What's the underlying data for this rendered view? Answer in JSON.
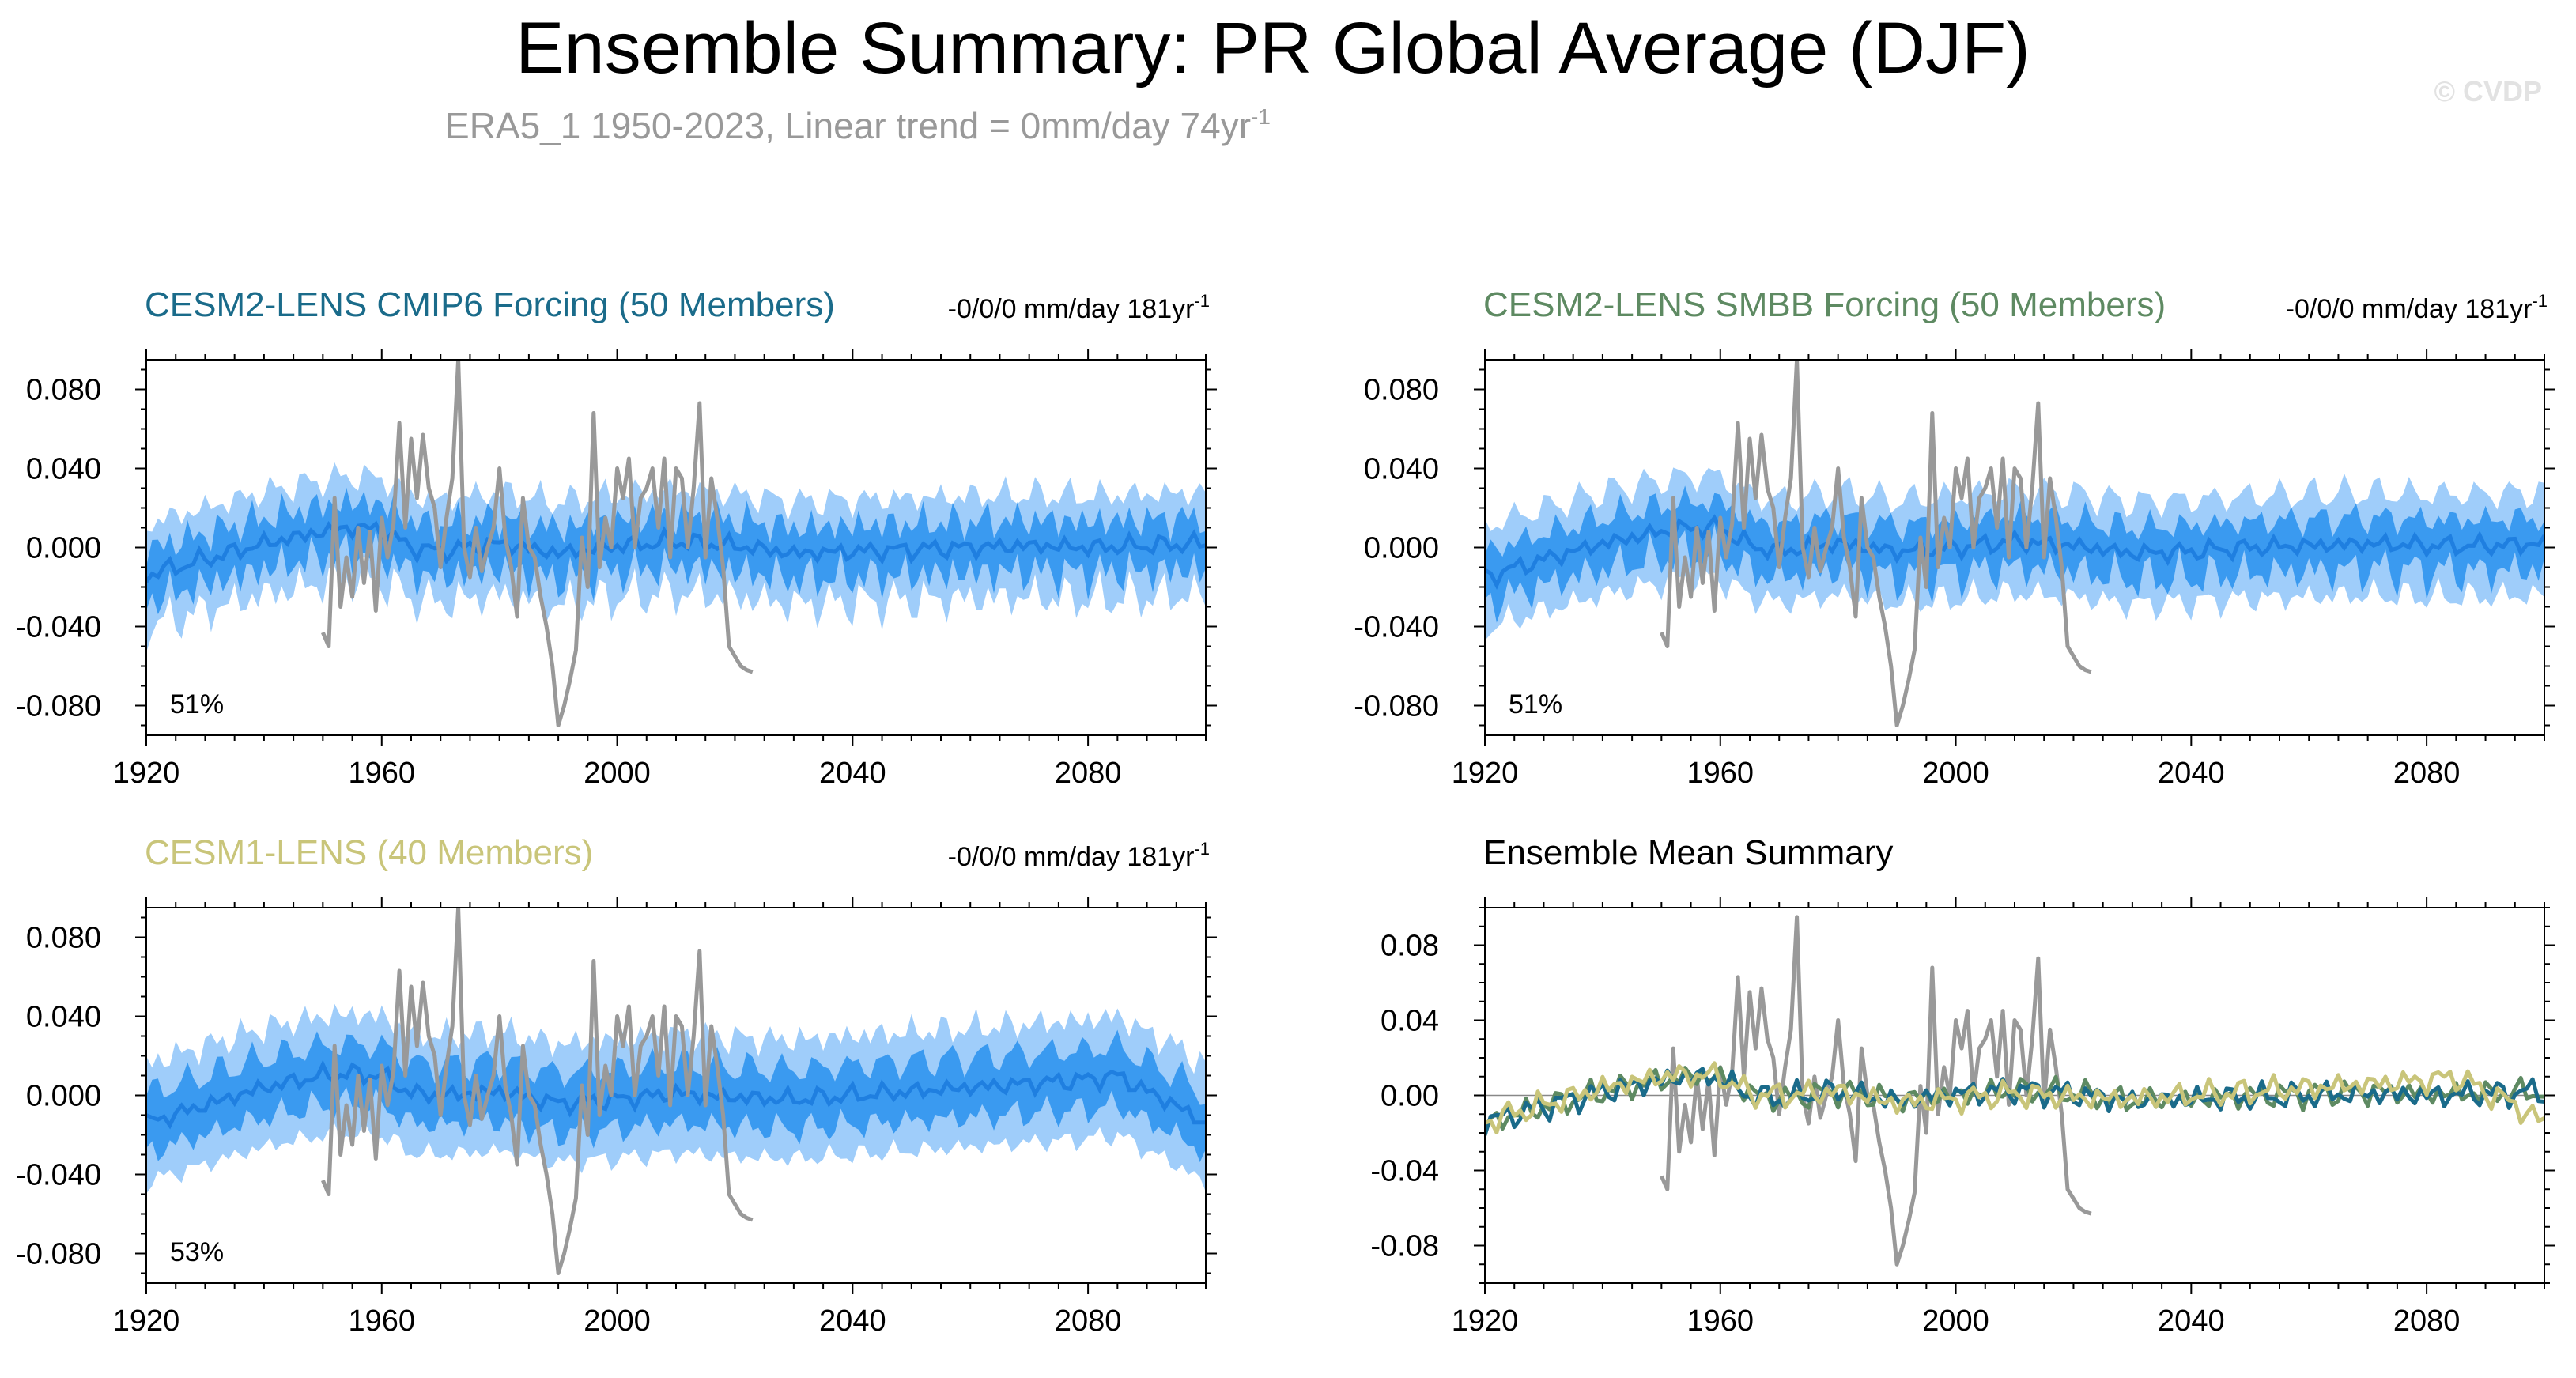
{
  "title": "Ensemble Summary: PR Global Average (DJF)",
  "subtitle": "ERA5_1 1950-2023, Linear trend = 0mm/day 74yr",
  "subtitle_sup": "-1",
  "watermark": "© CVDP",
  "colors": {
    "obs": "#999999",
    "band_outer": "#9fcdfa",
    "band_inner": "#3a9af0",
    "mean_line": "#1f7fe0",
    "cmip6": "#1a6b8a",
    "smbb": "#5e8a62",
    "cesm1": "#c9c57a"
  },
  "chart_data": [
    {
      "type": "area",
      "panel": "top-left",
      "title": "CESM2-LENS CMIP6 Forcing (50 Members)",
      "title_color": "#1a6b8a",
      "trend_label": "-0/0/0 mm/day 181yr",
      "trend_sup": "-1",
      "percent_label": "51%",
      "xlim": [
        1920,
        2100
      ],
      "ylim": [
        -0.095,
        0.095
      ],
      "xticks": [
        "1920",
        "1960",
        "2000",
        "2040",
        "2080"
      ],
      "yticks": [
        "0.080",
        "0.040",
        "0.000",
        "-0.040",
        "-0.080"
      ],
      "ensemble_mean": {
        "x": [
          1920,
          1930,
          1940,
          1950,
          1955,
          1960,
          1965,
          1970,
          1980,
          1990,
          2000,
          2010,
          2020,
          2030,
          2040,
          2050,
          2060,
          2070,
          2080,
          2090,
          2100
        ],
        "y": [
          -0.014,
          -0.006,
          0.002,
          0.008,
          0.01,
          0.009,
          0.0,
          -0.002,
          0.002,
          -0.003,
          0.001,
          0.003,
          0.001,
          -0.003,
          -0.002,
          -0.001,
          0.0,
          0.001,
          0.0,
          0.001,
          0.002
        ]
      },
      "inner_halfwidth": 0.013,
      "outer_halfwidth": 0.026,
      "series": [
        {
          "name": "ERA5_1",
          "x": [
            1950,
            1951,
            1952,
            1953,
            1954,
            1955,
            1956,
            1957,
            1958,
            1959,
            1960,
            1961,
            1962,
            1963,
            1964,
            1965,
            1966,
            1967,
            1968,
            1969,
            1970,
            1971,
            1972,
            1973,
            1974,
            1975,
            1976,
            1977,
            1978,
            1979,
            1980,
            1981,
            1982,
            1983,
            1984,
            1985,
            1986,
            1987,
            1988,
            1989,
            1990,
            1991,
            1992,
            1993,
            1994,
            1995,
            1996,
            1997,
            1998,
            1999,
            2000,
            2001,
            2002,
            2003,
            2004,
            2005,
            2006,
            2007,
            2008,
            2009,
            2010,
            2011,
            2012,
            2013,
            2014,
            2015,
            2016,
            2017,
            2018,
            2019,
            2020,
            2021,
            2022,
            2023
          ],
          "y": [
            -0.043,
            -0.05,
            0.025,
            -0.03,
            -0.005,
            -0.025,
            0.01,
            -0.018,
            0.008,
            -0.032,
            0.015,
            -0.005,
            0.012,
            0.063,
            0.01,
            0.055,
            0.025,
            0.057,
            0.03,
            0.02,
            -0.01,
            0.015,
            0.035,
            0.095,
            0.0,
            -0.015,
            0.01,
            -0.012,
            0.0,
            0.01,
            0.04,
            0.005,
            -0.01,
            -0.035,
            0.025,
            0.0,
            -0.005,
            -0.025,
            -0.04,
            -0.06,
            -0.09,
            -0.08,
            -0.067,
            -0.052,
            0.005,
            -0.02,
            0.068,
            -0.01,
            0.015,
            0.0,
            0.04,
            0.025,
            0.045,
            0.0,
            0.025,
            0.03,
            0.04,
            0.01,
            0.045,
            -0.005,
            0.04,
            0.035,
            0.0,
            0.03,
            0.073,
            -0.005,
            0.035,
            0.015,
            -0.01,
            -0.05,
            -0.055,
            -0.06,
            -0.062,
            -0.063
          ]
        }
      ]
    },
    {
      "type": "area",
      "panel": "top-right",
      "title": "CESM2-LENS SMBB Forcing (50 Members)",
      "title_color": "#5e8a62",
      "trend_label": "-0/0/0 mm/day 181yr",
      "trend_sup": "-1",
      "percent_label": "51%",
      "xlim": [
        1920,
        2100
      ],
      "ylim": [
        -0.095,
        0.095
      ],
      "xticks": [
        "1920",
        "1960",
        "2000",
        "2040",
        "2080"
      ],
      "yticks": [
        "0.080",
        "0.040",
        "0.000",
        "-0.040",
        "-0.080"
      ],
      "ensemble_mean": {
        "x": [
          1920,
          1930,
          1940,
          1950,
          1955,
          1960,
          1965,
          1970,
          1980,
          1990,
          2000,
          2010,
          2020,
          2030,
          2040,
          2050,
          2060,
          2070,
          2080,
          2090,
          2100
        ],
        "y": [
          -0.015,
          -0.006,
          0.002,
          0.008,
          0.01,
          0.01,
          0.001,
          -0.002,
          0.002,
          -0.002,
          0.0,
          0.003,
          0.001,
          -0.003,
          -0.002,
          0.0,
          0.001,
          0.002,
          0.001,
          0.001,
          0.002
        ]
      },
      "inner_halfwidth": 0.013,
      "outer_halfwidth": 0.026,
      "series": [
        {
          "name": "ERA5_1",
          "x": [
            1950,
            1951,
            1952,
            1953,
            1954,
            1955,
            1956,
            1957,
            1958,
            1959,
            1960,
            1961,
            1962,
            1963,
            1964,
            1965,
            1966,
            1967,
            1968,
            1969,
            1970,
            1971,
            1972,
            1973,
            1974,
            1975,
            1976,
            1977,
            1978,
            1979,
            1980,
            1981,
            1982,
            1983,
            1984,
            1985,
            1986,
            1987,
            1988,
            1989,
            1990,
            1991,
            1992,
            1993,
            1994,
            1995,
            1996,
            1997,
            1998,
            1999,
            2000,
            2001,
            2002,
            2003,
            2004,
            2005,
            2006,
            2007,
            2008,
            2009,
            2010,
            2011,
            2012,
            2013,
            2014,
            2015,
            2016,
            2017,
            2018,
            2019,
            2020,
            2021,
            2022,
            2023
          ],
          "y": [
            -0.043,
            -0.05,
            0.025,
            -0.03,
            -0.005,
            -0.025,
            0.01,
            -0.018,
            0.008,
            -0.032,
            0.015,
            -0.005,
            0.012,
            0.063,
            0.01,
            0.055,
            0.025,
            0.057,
            0.03,
            0.02,
            -0.01,
            0.015,
            0.035,
            0.095,
            0.0,
            -0.015,
            0.01,
            -0.012,
            0.0,
            0.01,
            0.04,
            0.005,
            -0.01,
            -0.035,
            0.025,
            0.0,
            -0.005,
            -0.025,
            -0.04,
            -0.06,
            -0.09,
            -0.08,
            -0.067,
            -0.052,
            0.005,
            -0.02,
            0.068,
            -0.01,
            0.015,
            0.0,
            0.04,
            0.025,
            0.045,
            0.0,
            0.025,
            0.03,
            0.04,
            0.01,
            0.045,
            -0.005,
            0.04,
            0.035,
            0.0,
            0.03,
            0.073,
            -0.005,
            0.035,
            0.015,
            -0.01,
            -0.05,
            -0.055,
            -0.06,
            -0.062,
            -0.063
          ]
        }
      ]
    },
    {
      "type": "area",
      "panel": "bottom-left",
      "title": "CESM1-LENS (40 Members)",
      "title_color": "#c9c57a",
      "trend_label": "-0/0/0 mm/day 181yr",
      "trend_sup": "-1",
      "percent_label": "53%",
      "xlim": [
        1920,
        2100
      ],
      "ylim": [
        -0.095,
        0.095
      ],
      "xticks": [
        "1920",
        "1960",
        "2000",
        "2040",
        "2080"
      ],
      "yticks": [
        "0.080",
        "0.040",
        "0.000",
        "-0.040",
        "-0.080"
      ],
      "ensemble_mean": {
        "x": [
          1920,
          1930,
          1940,
          1950,
          1955,
          1960,
          1965,
          1970,
          1980,
          1990,
          2000,
          2010,
          2020,
          2030,
          2040,
          2050,
          2060,
          2070,
          2080,
          2085,
          2090,
          2095,
          2100
        ],
        "y": [
          -0.014,
          -0.005,
          0.004,
          0.01,
          0.011,
          0.01,
          0.001,
          0.0,
          0.002,
          -0.004,
          -0.002,
          0.001,
          -0.001,
          -0.002,
          0.0,
          0.002,
          0.004,
          0.006,
          0.008,
          0.01,
          0.002,
          -0.005,
          -0.015
        ]
      },
      "inner_halfwidth": 0.015,
      "outer_halfwidth": 0.03,
      "series": [
        {
          "name": "ERA5_1",
          "x": [
            1950,
            1951,
            1952,
            1953,
            1954,
            1955,
            1956,
            1957,
            1958,
            1959,
            1960,
            1961,
            1962,
            1963,
            1964,
            1965,
            1966,
            1967,
            1968,
            1969,
            1970,
            1971,
            1972,
            1973,
            1974,
            1975,
            1976,
            1977,
            1978,
            1979,
            1980,
            1981,
            1982,
            1983,
            1984,
            1985,
            1986,
            1987,
            1988,
            1989,
            1990,
            1991,
            1992,
            1993,
            1994,
            1995,
            1996,
            1997,
            1998,
            1999,
            2000,
            2001,
            2002,
            2003,
            2004,
            2005,
            2006,
            2007,
            2008,
            2009,
            2010,
            2011,
            2012,
            2013,
            2014,
            2015,
            2016,
            2017,
            2018,
            2019,
            2020,
            2021,
            2022,
            2023
          ],
          "y": [
            -0.043,
            -0.05,
            0.025,
            -0.03,
            -0.005,
            -0.025,
            0.01,
            -0.018,
            0.008,
            -0.032,
            0.015,
            -0.005,
            0.012,
            0.063,
            0.01,
            0.055,
            0.025,
            0.057,
            0.03,
            0.02,
            -0.01,
            0.015,
            0.035,
            0.095,
            0.0,
            -0.015,
            0.01,
            -0.012,
            0.0,
            0.01,
            0.04,
            0.005,
            -0.01,
            -0.035,
            0.025,
            0.0,
            -0.005,
            -0.025,
            -0.04,
            -0.06,
            -0.09,
            -0.08,
            -0.067,
            -0.052,
            0.005,
            -0.02,
            0.068,
            -0.01,
            0.015,
            0.0,
            0.04,
            0.025,
            0.045,
            0.0,
            0.025,
            0.03,
            0.04,
            0.01,
            0.045,
            -0.005,
            0.04,
            0.035,
            0.0,
            0.03,
            0.073,
            -0.005,
            0.035,
            0.015,
            -0.01,
            -0.05,
            -0.055,
            -0.06,
            -0.062,
            -0.063
          ]
        }
      ]
    },
    {
      "type": "line",
      "panel": "bottom-right",
      "title": "Ensemble Mean Summary",
      "title_color": "#000000",
      "xlim": [
        1920,
        2100
      ],
      "ylim": [
        -0.1,
        0.1
      ],
      "xticks": [
        "1920",
        "1960",
        "2000",
        "2040",
        "2080"
      ],
      "yticks": [
        "0.08",
        "0.04",
        "0.00",
        "-0.04",
        "-0.08"
      ],
      "series": [
        {
          "color": "#999999",
          "x": [
            1950,
            1951,
            1952,
            1953,
            1954,
            1955,
            1956,
            1957,
            1958,
            1959,
            1960,
            1961,
            1962,
            1963,
            1964,
            1965,
            1966,
            1967,
            1968,
            1969,
            1970,
            1971,
            1972,
            1973,
            1974,
            1975,
            1976,
            1977,
            1978,
            1979,
            1980,
            1981,
            1982,
            1983,
            1984,
            1985,
            1986,
            1987,
            1988,
            1989,
            1990,
            1991,
            1992,
            1993,
            1994,
            1995,
            1996,
            1997,
            1998,
            1999,
            2000,
            2001,
            2002,
            2003,
            2004,
            2005,
            2006,
            2007,
            2008,
            2009,
            2010,
            2011,
            2012,
            2013,
            2014,
            2015,
            2016,
            2017,
            2018,
            2019,
            2020,
            2021,
            2022,
            2023
          ],
          "y": [
            -0.043,
            -0.05,
            0.025,
            -0.03,
            -0.005,
            -0.025,
            0.01,
            -0.018,
            0.008,
            -0.032,
            0.015,
            -0.005,
            0.012,
            0.063,
            0.01,
            0.055,
            0.025,
            0.057,
            0.03,
            0.02,
            -0.01,
            0.015,
            0.035,
            0.095,
            0.0,
            -0.015,
            0.01,
            -0.012,
            0.0,
            0.01,
            0.04,
            0.005,
            -0.01,
            -0.035,
            0.025,
            0.0,
            -0.005,
            -0.025,
            -0.04,
            -0.06,
            -0.09,
            -0.08,
            -0.067,
            -0.052,
            0.005,
            -0.02,
            0.068,
            -0.01,
            0.015,
            0.0,
            0.04,
            0.025,
            0.045,
            0.0,
            0.025,
            0.03,
            0.04,
            0.01,
            0.045,
            -0.005,
            0.04,
            0.035,
            0.0,
            0.03,
            0.073,
            -0.005,
            0.035,
            0.015,
            -0.01,
            -0.05,
            -0.055,
            -0.06,
            -0.062,
            -0.063
          ]
        },
        {
          "color": "#5e8a62",
          "x": [
            1920,
            1930,
            1940,
            1950,
            1955,
            1960,
            1965,
            1970,
            1980,
            1990,
            2000,
            2010,
            2020,
            2030,
            2040,
            2050,
            2060,
            2070,
            2080,
            2090,
            2100
          ],
          "y": [
            -0.015,
            -0.006,
            0.002,
            0.008,
            0.01,
            0.01,
            0.001,
            -0.002,
            0.002,
            -0.002,
            0.0,
            0.003,
            0.001,
            -0.003,
            -0.002,
            0.0,
            0.001,
            0.002,
            0.001,
            0.001,
            0.002
          ]
        },
        {
          "color": "#1a6b8a",
          "x": [
            1920,
            1930,
            1940,
            1950,
            1955,
            1960,
            1965,
            1970,
            1980,
            1990,
            2000,
            2010,
            2020,
            2030,
            2040,
            2050,
            2060,
            2070,
            2080,
            2090,
            2100
          ],
          "y": [
            -0.014,
            -0.006,
            0.002,
            0.008,
            0.01,
            0.009,
            0.0,
            -0.002,
            0.002,
            -0.003,
            0.001,
            0.003,
            0.001,
            -0.003,
            -0.002,
            -0.001,
            0.0,
            0.001,
            0.0,
            0.001,
            0.002
          ]
        },
        {
          "color": "#c9c57a",
          "x": [
            1920,
            1930,
            1940,
            1950,
            1955,
            1960,
            1965,
            1970,
            1980,
            1990,
            2000,
            2010,
            2020,
            2030,
            2040,
            2050,
            2060,
            2070,
            2080,
            2085,
            2090,
            2095,
            2100
          ],
          "y": [
            -0.014,
            -0.005,
            0.004,
            0.01,
            0.011,
            0.01,
            0.001,
            0.0,
            0.002,
            -0.004,
            -0.002,
            0.001,
            -0.001,
            -0.002,
            0.0,
            0.002,
            0.004,
            0.006,
            0.008,
            0.01,
            0.002,
            -0.005,
            -0.015
          ]
        }
      ]
    }
  ]
}
